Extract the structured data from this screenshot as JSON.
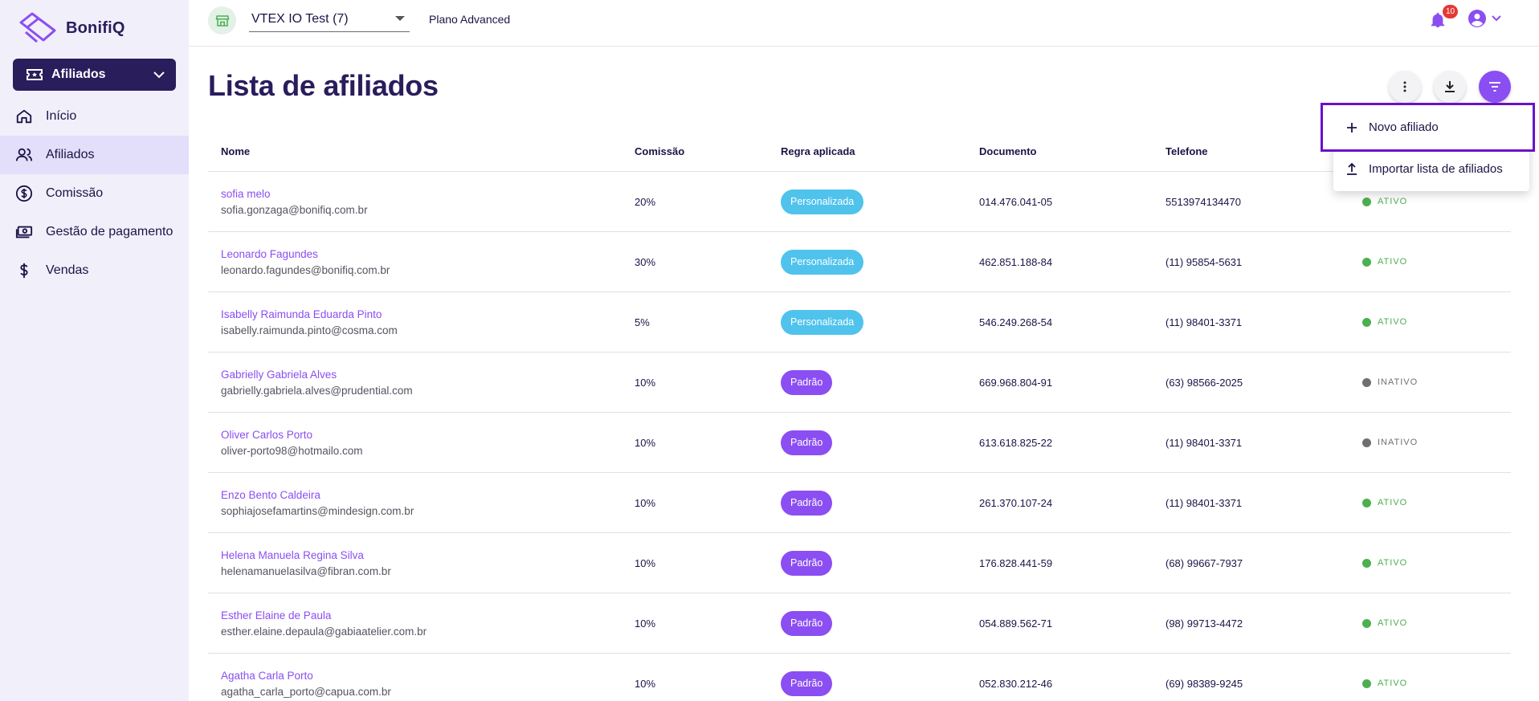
{
  "brand": {
    "name": "BonifiQ",
    "accent": "#8b4ef2",
    "dark": "#2a1d5c"
  },
  "sidebar": {
    "module": {
      "label": "Afiliados",
      "icon": "ticket-icon"
    },
    "items": [
      {
        "label": "Início",
        "icon": "home-icon",
        "active": false
      },
      {
        "label": "Afiliados",
        "icon": "users-icon",
        "active": true
      },
      {
        "label": "Comissão",
        "icon": "dollar-circle-icon",
        "active": false
      },
      {
        "label": "Gestão de pagamento",
        "icon": "cash-icon",
        "active": false
      },
      {
        "label": "Vendas",
        "icon": "dollar-icon",
        "active": false
      }
    ]
  },
  "topbar": {
    "store": "VTEX IO Test (7)",
    "plan": "Plano Advanced",
    "notifications": "10"
  },
  "page": {
    "title": "Lista de afiliados"
  },
  "menu": {
    "items": [
      {
        "label": "Novo afiliado",
        "icon": "plus-icon"
      },
      {
        "label": "Importar lista de afiliados",
        "icon": "upload-icon"
      }
    ]
  },
  "table": {
    "headers": {
      "name": "Nome",
      "commission": "Comissão",
      "rule": "Regra aplicada",
      "document": "Documento",
      "phone": "Telefone"
    },
    "rows": [
      {
        "name": "sofia melo",
        "email": "sofia.gonzaga@bonifiq.com.br",
        "commission": "20%",
        "rule": "Personalizada",
        "rule_type": "custom",
        "document": "014.476.041-05",
        "phone": "5513974134470",
        "status": "ATIVO",
        "active": true
      },
      {
        "name": "Leonardo Fagundes",
        "email": "leonardo.fagundes@bonifiq.com.br",
        "commission": "30%",
        "rule": "Personalizada",
        "rule_type": "custom",
        "document": "462.851.188-84",
        "phone": "(11) 95854-5631",
        "status": "ATIVO",
        "active": true
      },
      {
        "name": "Isabelly Raimunda Eduarda Pinto",
        "email": "isabelly.raimunda.pinto@cosma.com",
        "commission": "5%",
        "rule": "Personalizada",
        "rule_type": "custom",
        "document": "546.249.268-54",
        "phone": "(11) 98401-3371",
        "status": "ATIVO",
        "active": true
      },
      {
        "name": "Gabrielly Gabriela Alves",
        "email": "gabrielly.gabriela.alves@prudential.com",
        "commission": "10%",
        "rule": "Padrão",
        "rule_type": "default",
        "document": "669.968.804-91",
        "phone": "(63) 98566-2025",
        "status": "INATIVO",
        "active": false
      },
      {
        "name": "Oliver Carlos Porto",
        "email": "oliver-porto98@hotmailo.com",
        "commission": "10%",
        "rule": "Padrão",
        "rule_type": "default",
        "document": "613.618.825-22",
        "phone": "(11) 98401-3371",
        "status": "INATIVO",
        "active": false
      },
      {
        "name": "Enzo Bento Caldeira",
        "email": "sophiajosefamartins@mindesign.com.br",
        "commission": "10%",
        "rule": "Padrão",
        "rule_type": "default",
        "document": "261.370.107-24",
        "phone": "(11) 98401-3371",
        "status": "ATIVO",
        "active": true
      },
      {
        "name": "Helena Manuela Regina Silva",
        "email": "helenamanuelasilva@fibran.com.br",
        "commission": "10%",
        "rule": "Padrão",
        "rule_type": "default",
        "document": "176.828.441-59",
        "phone": "(68) 99667-7937",
        "status": "ATIVO",
        "active": true
      },
      {
        "name": "Esther Elaine de Paula",
        "email": "esther.elaine.depaula@gabiaatelier.com.br",
        "commission": "10%",
        "rule": "Padrão",
        "rule_type": "default",
        "document": "054.889.562-71",
        "phone": "(98) 99713-4472",
        "status": "ATIVO",
        "active": true
      },
      {
        "name": "Agatha Carla Porto",
        "email": "agatha_carla_porto@capua.com.br",
        "commission": "10%",
        "rule": "Padrão",
        "rule_type": "default",
        "document": "052.830.212-46",
        "phone": "(69) 98389-9245",
        "status": "ATIVO",
        "active": true
      }
    ]
  },
  "colors": {
    "active_status": "#4caf50",
    "inactive_status": "#6f6f6f",
    "custom_pill": "#4fc3ec",
    "default_pill": "#8b4ef2"
  }
}
